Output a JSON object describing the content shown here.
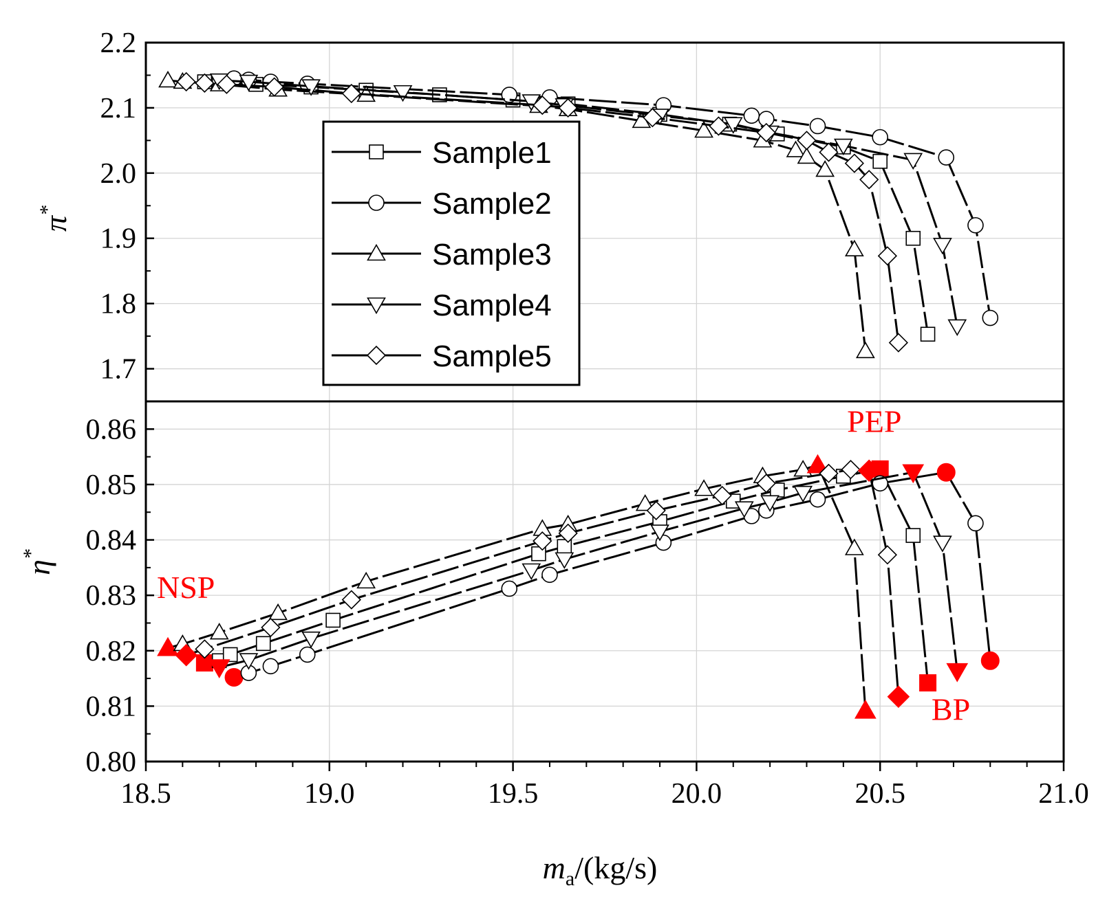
{
  "chart_data": {
    "type": "line",
    "xlabel": "m_a/(kg/s)",
    "xlabel_main": "m",
    "xlabel_sub": "a",
    "xlabel_rest": "/(kg/s)",
    "xlim": [
      18.5,
      21.0
    ],
    "xticks": [
      "18.5",
      "19.0",
      "19.5",
      "20.0",
      "20.5",
      "21.0"
    ],
    "grid": true,
    "legend": {
      "placement": "inside-top-left",
      "entries": [
        "Sample1",
        "Sample2",
        "Sample3",
        "Sample4",
        "Sample5"
      ]
    },
    "panels": [
      {
        "name": "pressure-ratio",
        "ylabel": "π*",
        "ylabel_main": "π",
        "ylabel_sup": "*",
        "ylim": [
          1.65,
          2.2
        ],
        "yticks": [
          "1.7",
          "1.8",
          "1.9",
          "2.0",
          "2.1",
          "2.2"
        ],
        "series": [
          {
            "name": "Sample1",
            "marker": "square",
            "x": [
              18.66,
              18.7,
              18.8,
              18.95,
              19.1,
              19.3,
              19.5,
              19.65,
              19.9,
              20.09,
              20.22,
              20.4,
              20.5,
              20.59,
              20.63
            ],
            "y": [
              2.14,
              2.138,
              2.136,
              2.132,
              2.127,
              2.12,
              2.112,
              2.106,
              2.09,
              2.075,
              2.06,
              2.04,
              2.018,
              1.9,
              1.753
            ]
          },
          {
            "name": "Sample2",
            "marker": "circle",
            "x": [
              18.74,
              18.78,
              18.84,
              18.94,
              19.49,
              19.6,
              19.91,
              20.15,
              20.19,
              20.33,
              20.5,
              20.68,
              20.76,
              20.8
            ],
            "y": [
              2.145,
              2.143,
              2.14,
              2.137,
              2.12,
              2.116,
              2.104,
              2.088,
              2.083,
              2.072,
              2.055,
              2.024,
              1.92,
              1.778
            ]
          },
          {
            "name": "Sample3",
            "marker": "triangle-up",
            "x": [
              18.56,
              18.6,
              18.7,
              18.86,
              19.1,
              19.57,
              19.65,
              19.85,
              20.02,
              20.18,
              20.27,
              20.3,
              20.35,
              20.43,
              20.46
            ],
            "y": [
              2.142,
              2.14,
              2.136,
              2.128,
              2.12,
              2.103,
              2.098,
              2.08,
              2.065,
              2.05,
              2.035,
              2.025,
              2.005,
              1.883,
              1.727
            ]
          },
          {
            "name": "Sample4",
            "marker": "triangle-down",
            "x": [
              18.7,
              18.78,
              18.95,
              19.2,
              19.55,
              19.64,
              19.9,
              20.1,
              20.2,
              20.4,
              20.59,
              20.67,
              20.71
            ],
            "y": [
              2.142,
              2.14,
              2.133,
              2.124,
              2.11,
              2.104,
              2.088,
              2.075,
              2.062,
              2.042,
              2.02,
              1.89,
              1.765
            ]
          },
          {
            "name": "Sample5",
            "marker": "diamond",
            "x": [
              18.61,
              18.66,
              18.72,
              18.85,
              19.06,
              19.58,
              19.65,
              19.88,
              20.06,
              20.19,
              20.3,
              20.36,
              20.43,
              20.47,
              20.52,
              20.55
            ],
            "y": [
              2.14,
              2.138,
              2.136,
              2.132,
              2.122,
              2.104,
              2.1,
              2.085,
              2.072,
              2.062,
              2.05,
              2.032,
              2.015,
              1.99,
              1.873,
              1.74
            ]
          }
        ]
      },
      {
        "name": "efficiency",
        "ylabel": "η*",
        "ylabel_main": "η",
        "ylabel_sup": "*",
        "ylim": [
          0.8,
          0.865
        ],
        "yticks": [
          "0.80",
          "0.81",
          "0.82",
          "0.83",
          "0.84",
          "0.85",
          "0.86"
        ],
        "series": [
          {
            "name": "Sample1",
            "marker": "square",
            "x": [
              18.66,
              18.7,
              18.73,
              18.82,
              19.01,
              19.57,
              19.64,
              19.9,
              20.1,
              20.22,
              20.4,
              20.5,
              20.59,
              20.63
            ],
            "y": [
              0.8178,
              0.8182,
              0.8193,
              0.8213,
              0.8255,
              0.8375,
              0.8388,
              0.8433,
              0.847,
              0.849,
              0.8515,
              0.8528,
              0.8408,
              0.8142
            ],
            "highlight": [
              0,
              11,
              13
            ]
          },
          {
            "name": "Sample2",
            "marker": "circle",
            "x": [
              18.74,
              18.78,
              18.84,
              18.94,
              19.49,
              19.6,
              19.91,
              20.15,
              20.19,
              20.33,
              20.5,
              20.68,
              20.76,
              20.8
            ],
            "y": [
              0.8152,
              0.816,
              0.8172,
              0.8193,
              0.8312,
              0.8337,
              0.8395,
              0.8443,
              0.8453,
              0.8473,
              0.8502,
              0.8522,
              0.843,
              0.8182
            ],
            "highlight": [
              0,
              11,
              13
            ]
          },
          {
            "name": "Sample3",
            "marker": "triangle-up",
            "x": [
              18.56,
              18.6,
              18.7,
              18.86,
              19.1,
              19.58,
              19.65,
              19.86,
              20.02,
              20.18,
              20.29,
              20.33,
              20.43,
              20.46
            ],
            "y": [
              0.8205,
              0.8212,
              0.8233,
              0.8268,
              0.8325,
              0.842,
              0.8428,
              0.8465,
              0.8492,
              0.8515,
              0.8527,
              0.8535,
              0.8385,
              0.8092
            ],
            "highlight": [
              0,
              11,
              13
            ]
          },
          {
            "name": "Sample4",
            "marker": "triangle-down",
            "x": [
              18.7,
              18.78,
              18.95,
              19.55,
              19.64,
              19.9,
              20.13,
              20.2,
              20.29,
              20.59,
              20.67,
              20.71
            ],
            "y": [
              0.817,
              0.8183,
              0.8222,
              0.8345,
              0.8365,
              0.8415,
              0.8457,
              0.8468,
              0.8485,
              0.8522,
              0.8395,
              0.8163
            ],
            "highlight": [
              0,
              9,
              11
            ]
          },
          {
            "name": "Sample5",
            "marker": "diamond",
            "x": [
              18.61,
              18.66,
              18.84,
              19.06,
              19.58,
              19.65,
              19.89,
              20.07,
              20.19,
              20.36,
              20.42,
              20.47,
              20.52,
              20.55
            ],
            "y": [
              0.8192,
              0.8203,
              0.8242,
              0.8292,
              0.8398,
              0.8412,
              0.8453,
              0.848,
              0.8502,
              0.852,
              0.8527,
              0.8525,
              0.8373,
              0.8117
            ],
            "highlight": [
              0,
              11,
              13
            ]
          }
        ],
        "annotations": [
          {
            "text": "NSP",
            "x": 18.53,
            "y": 0.8295
          },
          {
            "text": "PEP",
            "x": 20.41,
            "y": 0.8595
          },
          {
            "text": "BP",
            "x": 20.64,
            "y": 0.8075
          }
        ]
      }
    ]
  },
  "colors": {
    "highlight": "#ff0000",
    "line": "#000000",
    "grid": "#d4d4d4",
    "marker_fill": "#ffffff"
  }
}
